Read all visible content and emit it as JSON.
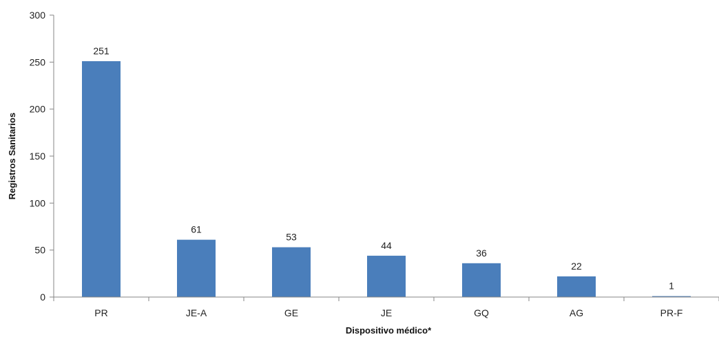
{
  "chart_data": {
    "type": "bar",
    "categories": [
      "PR",
      "JE-A",
      "GE",
      "JE",
      "GQ",
      "AG",
      "PR-F"
    ],
    "values": [
      251,
      61,
      53,
      44,
      36,
      22,
      1
    ],
    "title": "",
    "xlabel": "Dispositivo médico*",
    "ylabel": "Registros Sanitarios",
    "ylim": [
      0,
      300
    ],
    "yticks": [
      0,
      50,
      100,
      150,
      200,
      250,
      300
    ],
    "data_labels": true,
    "grid": false,
    "bar_color": "#4A7EBB",
    "axis_color": "#868686"
  }
}
